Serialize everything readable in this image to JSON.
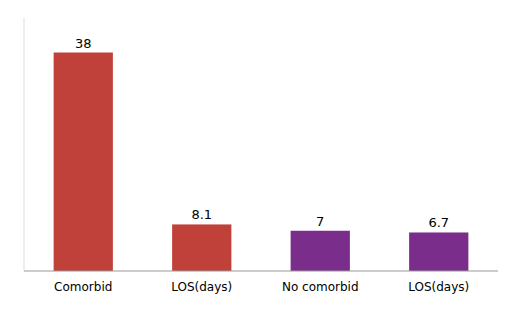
{
  "chart_data": {
    "type": "bar",
    "categories": [
      "Comorbid",
      "LOS(days)",
      "No comorbid",
      "LOS(days)"
    ],
    "values": [
      38,
      8.1,
      7,
      6.7
    ],
    "colors": [
      "#c0413a",
      "#c0413a",
      "#7b2d8b",
      "#7b2d8b"
    ],
    "ylim": [
      0,
      44
    ],
    "data_labels": true,
    "tick_labels": "x",
    "grid": false
  }
}
